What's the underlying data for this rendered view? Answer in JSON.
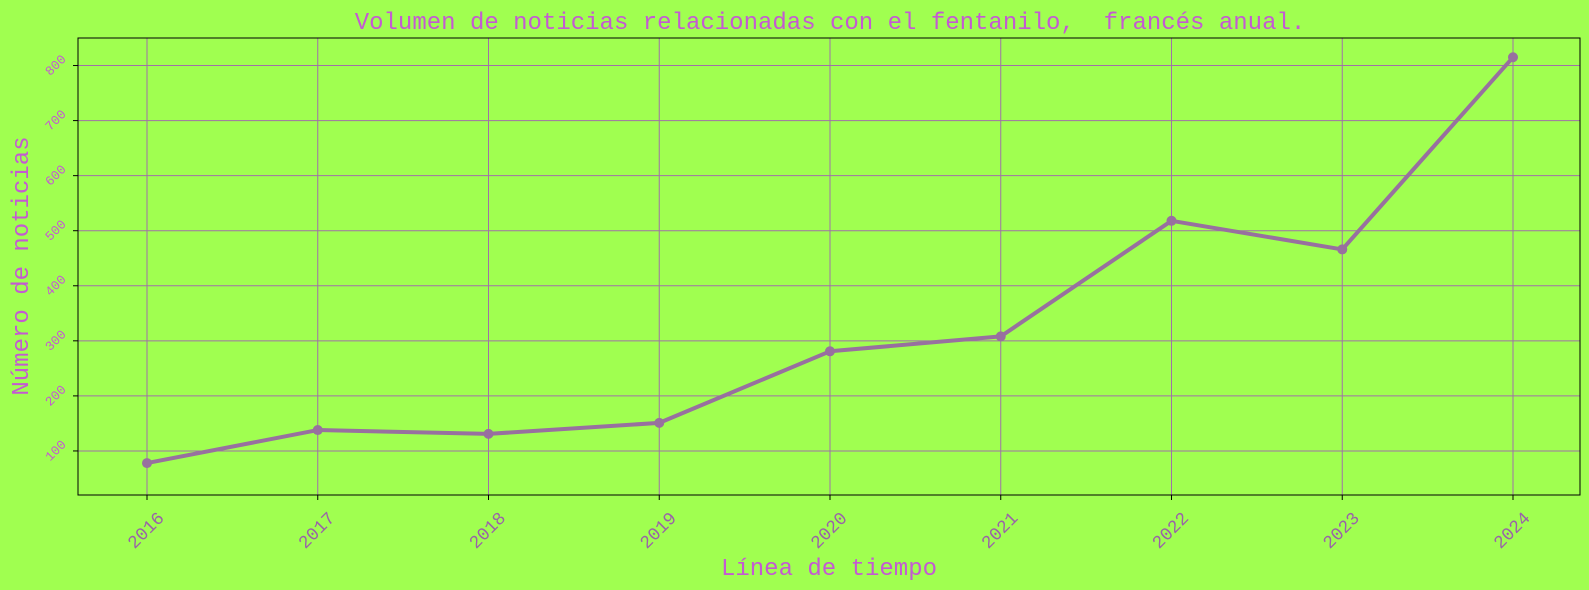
{
  "chart_data": {
    "type": "line",
    "title": "Volumen de noticias relacionadas con el fentanilo,  francés anual.",
    "xlabel": "Línea de tiempo",
    "ylabel": "Número de noticias",
    "x": [
      "2016",
      "2017",
      "2018",
      "2019",
      "2020",
      "2021",
      "2022",
      "2023",
      "2024"
    ],
    "series": [
      {
        "values": [
          78,
          138,
          131,
          151,
          281,
          308,
          518,
          466,
          815
        ]
      }
    ],
    "yticks": [
      "100",
      "200",
      "300",
      "400",
      "500",
      "600",
      "700",
      "800"
    ],
    "ylim": [
      20,
      850
    ],
    "grid": true,
    "colors": {
      "background": "#a0ff50",
      "line": "#98709f",
      "grid": "#a070a8",
      "text": "#c45ad2",
      "xtick": "#9a62a8"
    }
  }
}
